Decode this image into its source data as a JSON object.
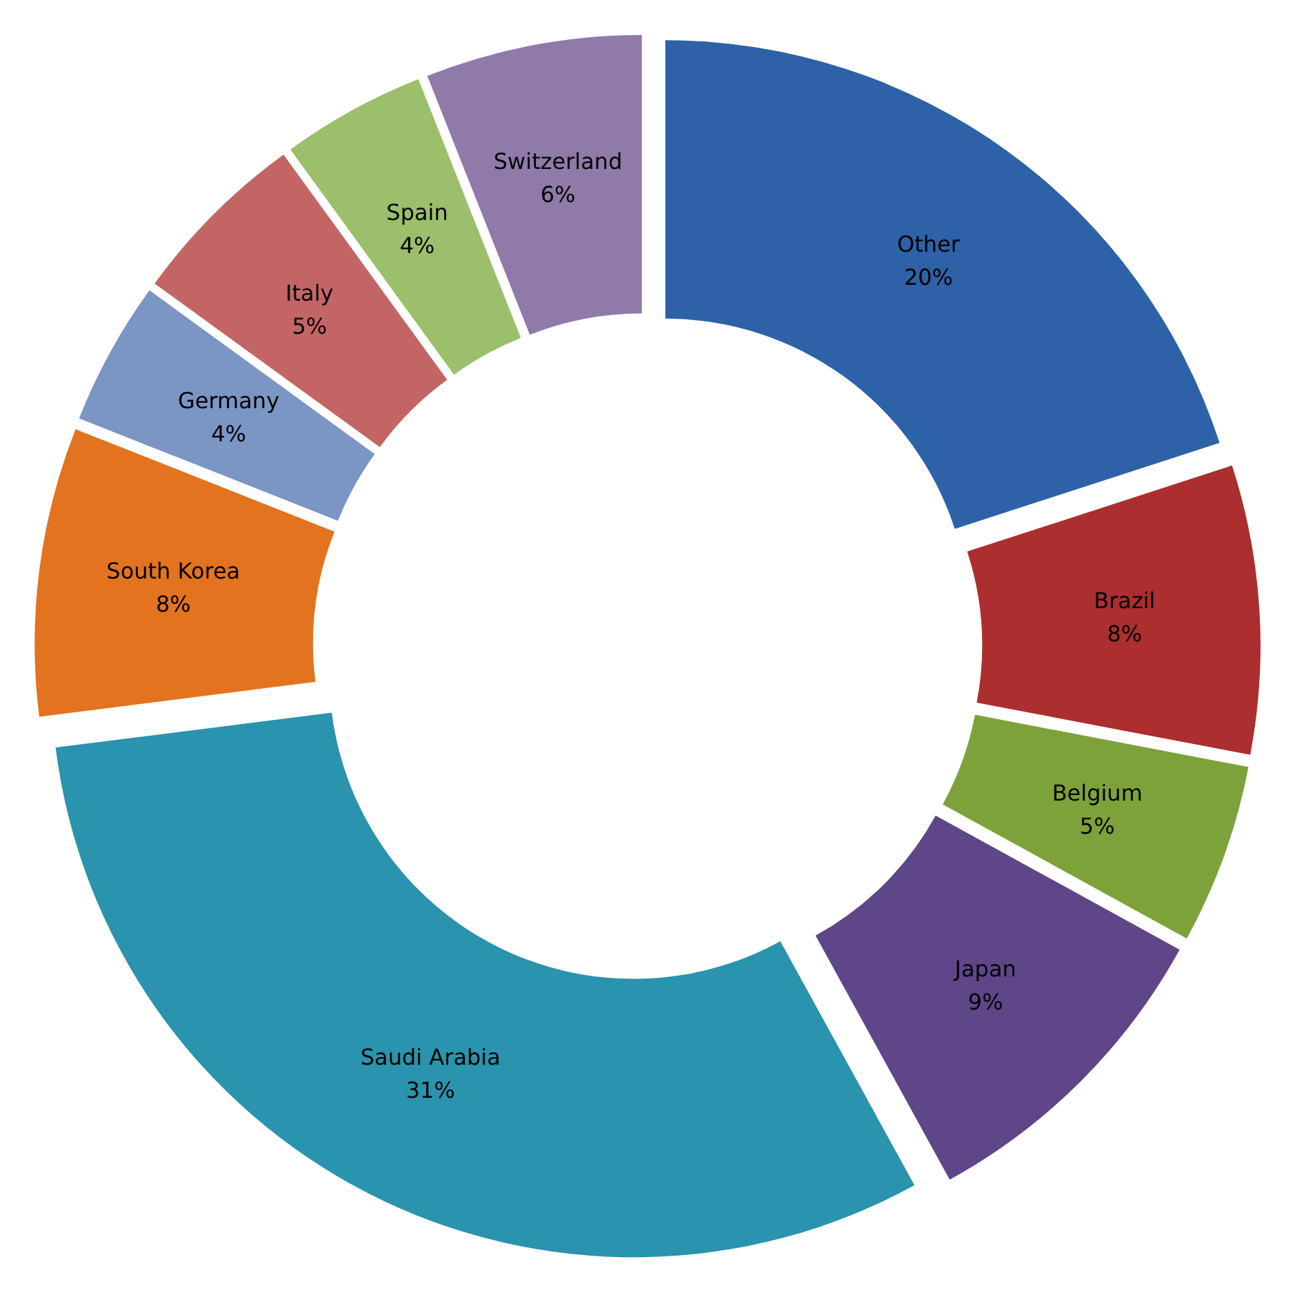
{
  "chart_data": {
    "type": "donut",
    "categories": [
      "Other",
      "Brazil",
      "Belgium",
      "Japan",
      "Saudi Arabia",
      "South Korea",
      "Germany",
      "Italy",
      "Spain",
      "Switzerland"
    ],
    "values": [
      20,
      8,
      5,
      9,
      31,
      8,
      4,
      5,
      4,
      6
    ],
    "value_labels": [
      "20%",
      "8%",
      "5%",
      "9%",
      "31%",
      "8%",
      "4%",
      "5%",
      "4%",
      "6%"
    ],
    "colors": [
      "#2e62a8",
      "#ac2e2e",
      "#7da23a",
      "#5e4689",
      "#2a93ad",
      "#e3731f",
      "#7b95c4",
      "#c46565",
      "#9bbf6a",
      "#8f7aaa"
    ],
    "legend": false
  }
}
